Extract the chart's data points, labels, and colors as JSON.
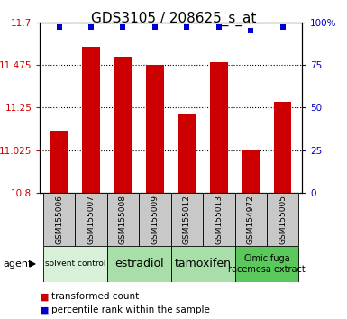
{
  "title": "GDS3105 / 208625_s_at",
  "samples": [
    "GSM155006",
    "GSM155007",
    "GSM155008",
    "GSM155009",
    "GSM155012",
    "GSM155013",
    "GSM154972",
    "GSM155005"
  ],
  "bar_values": [
    11.13,
    11.57,
    11.52,
    11.475,
    11.215,
    11.49,
    11.03,
    11.28
  ],
  "percentile_values": [
    97,
    97,
    97,
    97,
    97,
    97,
    95,
    97
  ],
  "bar_color": "#cc0000",
  "dot_color": "#0000cc",
  "ylim_left": [
    10.8,
    11.7
  ],
  "yticks_left": [
    10.8,
    11.025,
    11.25,
    11.475,
    11.7
  ],
  "ylim_right": [
    0,
    100
  ],
  "yticks_right": [
    0,
    25,
    50,
    75,
    100
  ],
  "ytick_labels_right": [
    "0",
    "25",
    "50",
    "75",
    "100%"
  ],
  "agent_groups": [
    {
      "label": "solvent control",
      "samples": [
        "GSM155006",
        "GSM155007"
      ],
      "color": "#d8f0d8",
      "fontsize": 6.5
    },
    {
      "label": "estradiol",
      "samples": [
        "GSM155008",
        "GSM155009"
      ],
      "color": "#a8dfa8",
      "fontsize": 9
    },
    {
      "label": "tamoxifen",
      "samples": [
        "GSM155012",
        "GSM155013"
      ],
      "color": "#a8dfa8",
      "fontsize": 9
    },
    {
      "label": "Cimicifuga\nracemosa extract",
      "samples": [
        "GSM154972",
        "GSM155005"
      ],
      "color": "#5ac85a",
      "fontsize": 7
    }
  ],
  "legend_items": [
    {
      "label": "transformed count",
      "color": "#cc0000"
    },
    {
      "label": "percentile rank within the sample",
      "color": "#0000cc"
    }
  ],
  "bar_width": 0.55,
  "sample_box_color": "#c8c8c8",
  "title_fontsize": 11,
  "tick_fontsize": 7.5
}
